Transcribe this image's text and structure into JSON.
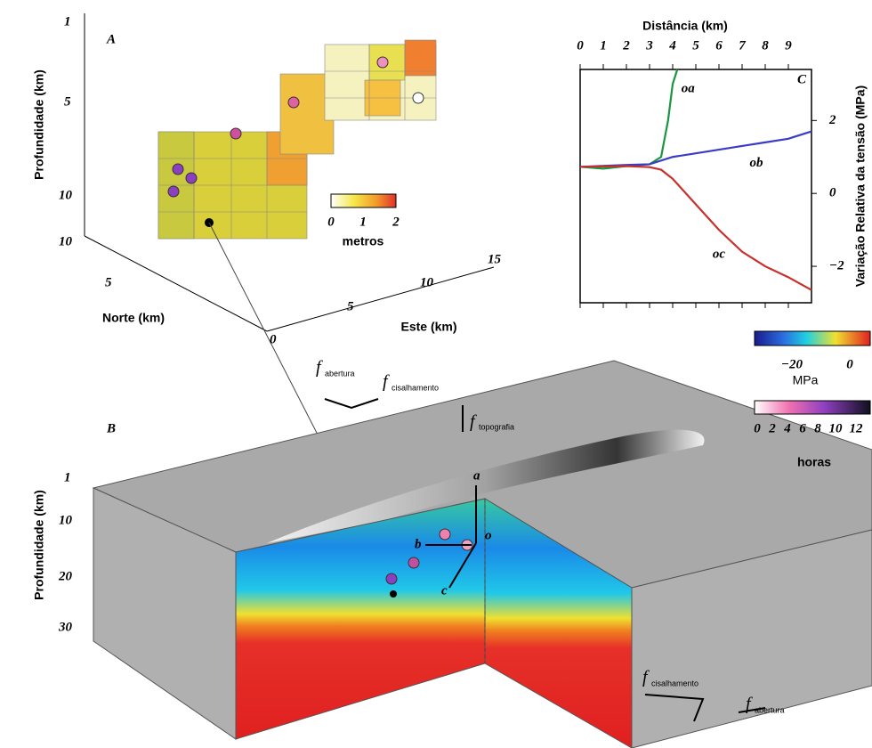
{
  "chart_data": {
    "type": "line",
    "panel_label": "C",
    "x_label": "Distância (km)",
    "y_label": "Variação Relativa da tensão (MPa)",
    "xlim": [
      0,
      10
    ],
    "ylim": [
      -3,
      3.4
    ],
    "xticks": [
      0,
      1,
      2,
      3,
      4,
      5,
      6,
      7,
      8,
      9
    ],
    "yticks": [
      {
        "value": -2,
        "label": "−2"
      },
      0,
      2
    ],
    "series": [
      {
        "name": "oa",
        "color": "#1a9641",
        "x": [
          0,
          1,
          2,
          3,
          3.5,
          3.8,
          4.0,
          4.2
        ],
        "values": [
          0.73,
          0.68,
          0.75,
          0.8,
          1.0,
          2.0,
          3.0,
          3.4
        ]
      },
      {
        "name": "ob",
        "color": "#3b3bc8",
        "x": [
          0,
          2,
          3,
          4,
          5,
          6,
          7,
          8,
          9,
          10
        ],
        "values": [
          0.73,
          0.78,
          0.8,
          1.0,
          1.1,
          1.2,
          1.3,
          1.4,
          1.5,
          1.7
        ]
      },
      {
        "name": "oc",
        "color": "#c8302a",
        "x": [
          0,
          2,
          3,
          3.5,
          4,
          5,
          6,
          7,
          8,
          9,
          10
        ],
        "values": [
          0.73,
          0.75,
          0.72,
          0.65,
          0.4,
          -0.3,
          -1.0,
          -1.6,
          -2.0,
          -2.3,
          -2.65
        ]
      }
    ]
  },
  "panel_a": {
    "label": "A",
    "y_axis_label": "Profundidade (km)",
    "y_ticks": [
      1,
      5,
      10
    ],
    "x_axis_label": "Norte (km)",
    "x_ticks": [
      10,
      5
    ],
    "z_axis_label": "Este (km)",
    "z_ticks": [
      0,
      5,
      10,
      15
    ],
    "colorbar_ticks": [
      0,
      1,
      2
    ],
    "colorbar_label": "metros"
  },
  "panel_b": {
    "label": "B",
    "y_axis_label": "Profundidade (km)",
    "y_ticks": [
      1,
      10,
      20,
      30
    ],
    "points": [
      "a",
      "b",
      "c",
      "o"
    ],
    "forces": [
      {
        "symbol": "f",
        "subscript": "abertura"
      },
      {
        "symbol": "f",
        "subscript": "cisalhamento"
      },
      {
        "symbol": "f",
        "subscript": "topografia"
      },
      {
        "symbol": "f",
        "subscript": "cisalhamento"
      },
      {
        "symbol": "f",
        "subscript": "abertura"
      }
    ]
  },
  "colorbars": [
    {
      "ticks": [
        {
          "value": -20,
          "label": "−20"
        },
        0
      ],
      "label": "MPa"
    },
    {
      "ticks": [
        0,
        2,
        4,
        6,
        8,
        10,
        12
      ],
      "label": "horas"
    }
  ]
}
